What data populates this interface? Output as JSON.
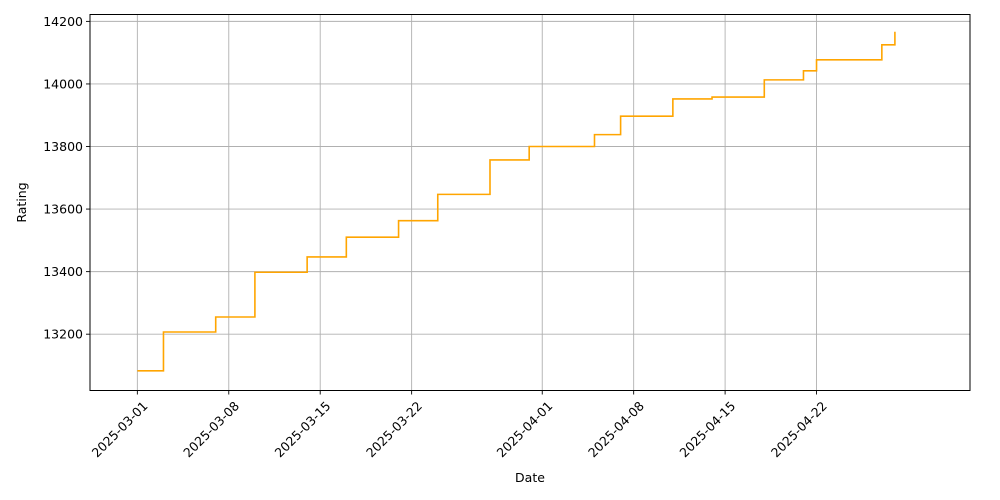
{
  "chart_data": {
    "type": "line",
    "step": "post",
    "title": "",
    "xlabel": "Date",
    "ylabel": "Rating",
    "grid": true,
    "line_color": "#ffa500",
    "xlim": [
      "2025-02-25T09:00",
      "2025-05-03T18:00"
    ],
    "ylim": [
      13020,
      14222
    ],
    "x_ticks": [
      "2025-03-01",
      "2025-03-08",
      "2025-03-15",
      "2025-03-22",
      "2025-04-01",
      "2025-04-08",
      "2025-04-15",
      "2025-04-22"
    ],
    "y_ticks": [
      13200,
      13400,
      13600,
      13800,
      14000,
      14200
    ],
    "series": [
      {
        "x": [
          "2025-03-01",
          "2025-03-03",
          "2025-03-07",
          "2025-03-10",
          "2025-03-14",
          "2025-03-17",
          "2025-03-21",
          "2025-03-24",
          "2025-03-28",
          "2025-03-31",
          "2025-04-05",
          "2025-04-07",
          "2025-04-11",
          "2025-04-14",
          "2025-04-18",
          "2025-04-21",
          "2025-04-22",
          "2025-04-27",
          "2025-04-28"
        ],
        "y": [
          13083,
          13207,
          13255,
          13398,
          13447,
          13510,
          13563,
          13647,
          13757,
          13800,
          13838,
          13897,
          13952,
          13958,
          14013,
          14042,
          14077,
          14125,
          14167
        ]
      }
    ]
  }
}
